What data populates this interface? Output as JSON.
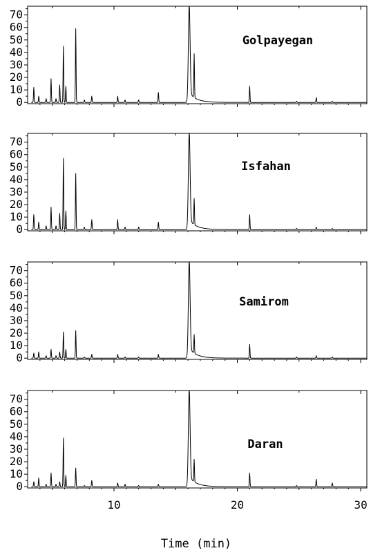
{
  "chart_data": {
    "type": "line",
    "xlabel": "Time (min)",
    "xlim": [
      3,
      30.5
    ],
    "ylim": [
      -1,
      77
    ],
    "x_ticks": [
      10,
      20,
      30
    ],
    "y_ticks": [
      0,
      10,
      20,
      30,
      40,
      50,
      60,
      70
    ],
    "panels": [
      {
        "name": "Golpayegan",
        "peaks": [
          {
            "x": 3.5,
            "y": 12
          },
          {
            "x": 3.9,
            "y": 5
          },
          {
            "x": 4.5,
            "y": 3
          },
          {
            "x": 4.9,
            "y": 19
          },
          {
            "x": 5.3,
            "y": 3
          },
          {
            "x": 5.6,
            "y": 14
          },
          {
            "x": 5.9,
            "y": 45
          },
          {
            "x": 6.1,
            "y": 13
          },
          {
            "x": 6.9,
            "y": 59
          },
          {
            "x": 7.6,
            "y": 2
          },
          {
            "x": 8.2,
            "y": 5
          },
          {
            "x": 10.3,
            "y": 5
          },
          {
            "x": 10.9,
            "y": 2
          },
          {
            "x": 12.0,
            "y": 2
          },
          {
            "x": 13.6,
            "y": 8
          },
          {
            "x": 16.1,
            "y": 78
          },
          {
            "x": 16.5,
            "y": 35
          },
          {
            "x": 21.0,
            "y": 13
          },
          {
            "x": 24.8,
            "y": 1
          },
          {
            "x": 26.4,
            "y": 4
          },
          {
            "x": 27.7,
            "y": 1
          }
        ]
      },
      {
        "name": "Isfahan",
        "peaks": [
          {
            "x": 3.5,
            "y": 12
          },
          {
            "x": 3.9,
            "y": 6
          },
          {
            "x": 4.5,
            "y": 3
          },
          {
            "x": 4.9,
            "y": 18
          },
          {
            "x": 5.3,
            "y": 3
          },
          {
            "x": 5.6,
            "y": 13
          },
          {
            "x": 5.9,
            "y": 57
          },
          {
            "x": 6.1,
            "y": 15
          },
          {
            "x": 6.9,
            "y": 45
          },
          {
            "x": 7.6,
            "y": 2
          },
          {
            "x": 8.2,
            "y": 8
          },
          {
            "x": 10.3,
            "y": 8
          },
          {
            "x": 10.9,
            "y": 2
          },
          {
            "x": 12.0,
            "y": 2
          },
          {
            "x": 13.6,
            "y": 6
          },
          {
            "x": 16.1,
            "y": 78
          },
          {
            "x": 16.5,
            "y": 21
          },
          {
            "x": 21.0,
            "y": 12
          },
          {
            "x": 24.8,
            "y": 1
          },
          {
            "x": 26.4,
            "y": 2
          },
          {
            "x": 27.7,
            "y": 1
          }
        ]
      },
      {
        "name": "Samirom",
        "peaks": [
          {
            "x": 3.5,
            "y": 4
          },
          {
            "x": 3.9,
            "y": 5
          },
          {
            "x": 4.5,
            "y": 2
          },
          {
            "x": 4.9,
            "y": 7
          },
          {
            "x": 5.3,
            "y": 2
          },
          {
            "x": 5.6,
            "y": 5
          },
          {
            "x": 5.9,
            "y": 21
          },
          {
            "x": 6.1,
            "y": 7
          },
          {
            "x": 6.9,
            "y": 22
          },
          {
            "x": 7.6,
            "y": 1
          },
          {
            "x": 8.2,
            "y": 3
          },
          {
            "x": 10.3,
            "y": 3
          },
          {
            "x": 10.9,
            "y": 1
          },
          {
            "x": 12.0,
            "y": 1
          },
          {
            "x": 13.6,
            "y": 3
          },
          {
            "x": 16.1,
            "y": 78
          },
          {
            "x": 16.5,
            "y": 15
          },
          {
            "x": 21.0,
            "y": 11
          },
          {
            "x": 24.8,
            "y": 1
          },
          {
            "x": 26.4,
            "y": 2
          },
          {
            "x": 27.7,
            "y": 1
          }
        ]
      },
      {
        "name": "Daran",
        "peaks": [
          {
            "x": 3.5,
            "y": 4
          },
          {
            "x": 3.9,
            "y": 7
          },
          {
            "x": 4.5,
            "y": 2
          },
          {
            "x": 4.9,
            "y": 11
          },
          {
            "x": 5.3,
            "y": 2
          },
          {
            "x": 5.6,
            "y": 4
          },
          {
            "x": 5.9,
            "y": 39
          },
          {
            "x": 6.1,
            "y": 9
          },
          {
            "x": 6.9,
            "y": 15
          },
          {
            "x": 7.6,
            "y": 1
          },
          {
            "x": 8.2,
            "y": 5
          },
          {
            "x": 10.3,
            "y": 3
          },
          {
            "x": 10.9,
            "y": 2
          },
          {
            "x": 12.0,
            "y": 1
          },
          {
            "x": 13.6,
            "y": 2
          },
          {
            "x": 16.1,
            "y": 78
          },
          {
            "x": 16.5,
            "y": 18
          },
          {
            "x": 21.0,
            "y": 11
          },
          {
            "x": 24.8,
            "y": 1
          },
          {
            "x": 26.4,
            "y": 6
          },
          {
            "x": 27.7,
            "y": 3
          }
        ]
      }
    ]
  }
}
